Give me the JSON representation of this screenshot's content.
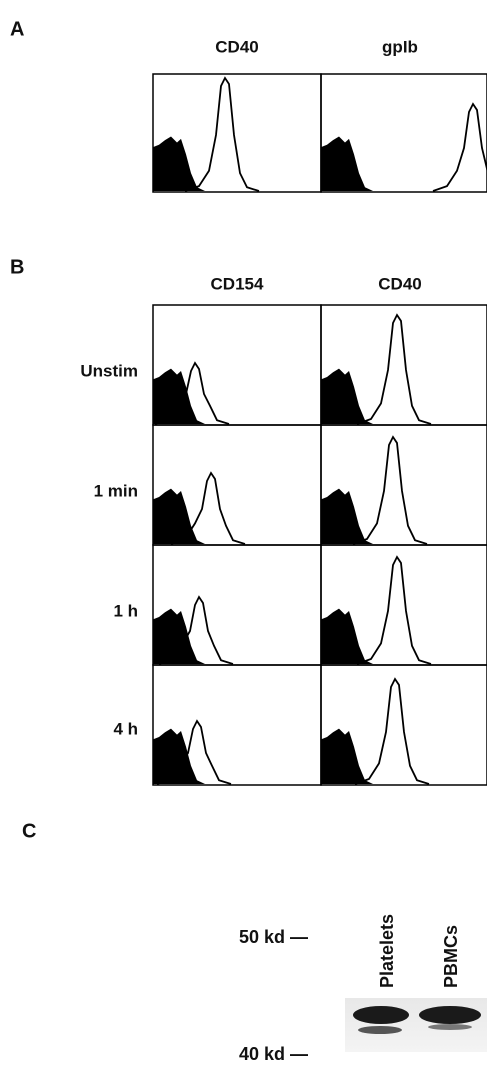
{
  "panels": [
    {
      "label": "A",
      "columns": [
        "CD40",
        "gpIb"
      ]
    },
    {
      "label": "B",
      "columns": [
        "CD154",
        "CD40"
      ],
      "rows": [
        "Unstim",
        "1 min",
        "1 h",
        "4 h"
      ]
    },
    {
      "label": "C",
      "lanes": [
        "Platelets",
        "PBMCs"
      ],
      "markers": [
        "50 kd —",
        "40 kd —"
      ]
    }
  ]
}
